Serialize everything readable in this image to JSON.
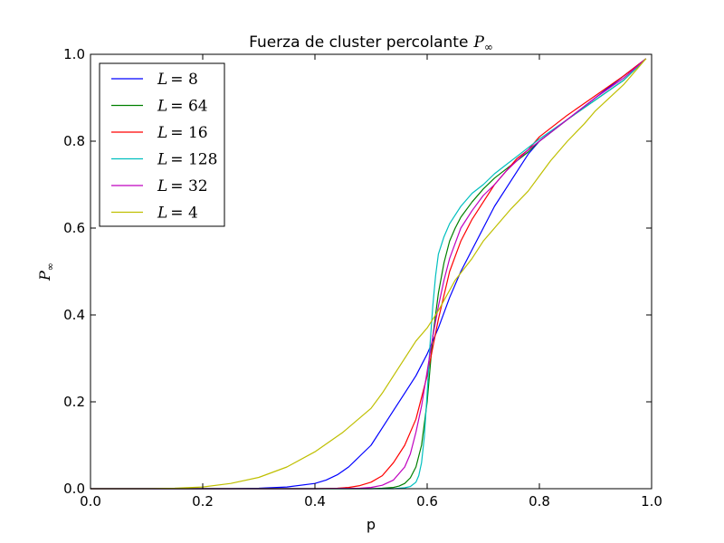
{
  "chart_data": {
    "type": "line",
    "title": "Fuerza de cluster percolante P∞",
    "title_parts": {
      "text": "Fuerza de cluster percolante",
      "math": "P",
      "sub": "∞"
    },
    "xlabel": "p",
    "ylabel": "P∞",
    "ylabel_parts": {
      "math": "P",
      "sub": "∞"
    },
    "xlim": [
      0.0,
      1.0
    ],
    "ylim": [
      0.0,
      1.0
    ],
    "xticks": [
      "0.0",
      "0.2",
      "0.4",
      "0.6",
      "0.8",
      "1.0"
    ],
    "yticks": [
      "0.0",
      "0.2",
      "0.4",
      "0.6",
      "0.8",
      "1.0"
    ],
    "grid": false,
    "legend_position": "top-left",
    "series": [
      {
        "name": "L = 8",
        "label_parts": {
          "var": "L",
          "num": "8"
        },
        "color": "#0000ff",
        "x": [
          0.0,
          0.05,
          0.1,
          0.15,
          0.2,
          0.25,
          0.3,
          0.35,
          0.4,
          0.42,
          0.44,
          0.46,
          0.48,
          0.5,
          0.52,
          0.54,
          0.56,
          0.58,
          0.6,
          0.62,
          0.64,
          0.66,
          0.68,
          0.7,
          0.72,
          0.74,
          0.76,
          0.78,
          0.8,
          0.85,
          0.9,
          0.95,
          0.99
        ],
        "values": [
          0.0,
          0.0,
          0.0,
          0.0,
          0.0,
          0.0,
          0.001,
          0.004,
          0.012,
          0.02,
          0.032,
          0.05,
          0.075,
          0.1,
          0.14,
          0.18,
          0.22,
          0.26,
          0.31,
          0.37,
          0.44,
          0.5,
          0.55,
          0.6,
          0.65,
          0.69,
          0.73,
          0.77,
          0.8,
          0.85,
          0.9,
          0.95,
          0.99
        ]
      },
      {
        "name": "L = 64",
        "label_parts": {
          "var": "L",
          "num": "64"
        },
        "color": "#008000",
        "x": [
          0.0,
          0.1,
          0.2,
          0.3,
          0.4,
          0.5,
          0.52,
          0.54,
          0.55,
          0.56,
          0.57,
          0.58,
          0.59,
          0.6,
          0.61,
          0.62,
          0.63,
          0.64,
          0.65,
          0.66,
          0.68,
          0.7,
          0.72,
          0.74,
          0.76,
          0.78,
          0.8,
          0.85,
          0.9,
          0.95,
          0.99
        ],
        "values": [
          0.0,
          0.0,
          0.0,
          0.0,
          0.0,
          0.0,
          0.001,
          0.003,
          0.006,
          0.012,
          0.025,
          0.05,
          0.1,
          0.2,
          0.35,
          0.45,
          0.52,
          0.57,
          0.6,
          0.625,
          0.66,
          0.69,
          0.715,
          0.735,
          0.755,
          0.775,
          0.8,
          0.85,
          0.895,
          0.94,
          0.99
        ]
      },
      {
        "name": "L = 16",
        "label_parts": {
          "var": "L",
          "num": "16"
        },
        "color": "#ff0000",
        "x": [
          0.0,
          0.1,
          0.2,
          0.3,
          0.4,
          0.44,
          0.46,
          0.48,
          0.5,
          0.52,
          0.54,
          0.56,
          0.58,
          0.6,
          0.62,
          0.64,
          0.66,
          0.68,
          0.7,
          0.72,
          0.74,
          0.76,
          0.78,
          0.8,
          0.85,
          0.9,
          0.95,
          0.99
        ],
        "values": [
          0.0,
          0.0,
          0.0,
          0.0,
          0.0,
          0.001,
          0.003,
          0.007,
          0.015,
          0.03,
          0.06,
          0.1,
          0.16,
          0.26,
          0.39,
          0.5,
          0.57,
          0.62,
          0.66,
          0.7,
          0.73,
          0.76,
          0.78,
          0.81,
          0.86,
          0.905,
          0.95,
          0.99
        ]
      },
      {
        "name": "L = 128",
        "label_parts": {
          "var": "L",
          "num": "128"
        },
        "color": "#00bfbf",
        "x": [
          0.0,
          0.1,
          0.2,
          0.3,
          0.4,
          0.5,
          0.54,
          0.56,
          0.57,
          0.58,
          0.585,
          0.59,
          0.595,
          0.6,
          0.605,
          0.61,
          0.615,
          0.62,
          0.63,
          0.64,
          0.66,
          0.68,
          0.7,
          0.72,
          0.74,
          0.76,
          0.78,
          0.8,
          0.85,
          0.9,
          0.95,
          0.99
        ],
        "values": [
          0.0,
          0.0,
          0.0,
          0.0,
          0.0,
          0.0,
          0.0,
          0.002,
          0.005,
          0.015,
          0.03,
          0.06,
          0.12,
          0.22,
          0.33,
          0.42,
          0.49,
          0.54,
          0.58,
          0.61,
          0.65,
          0.68,
          0.7,
          0.725,
          0.745,
          0.765,
          0.785,
          0.805,
          0.85,
          0.895,
          0.94,
          0.99
        ]
      },
      {
        "name": "L = 32",
        "label_parts": {
          "var": "L",
          "num": "32"
        },
        "color": "#bf00bf",
        "x": [
          0.0,
          0.1,
          0.2,
          0.3,
          0.4,
          0.48,
          0.5,
          0.52,
          0.54,
          0.56,
          0.57,
          0.58,
          0.59,
          0.6,
          0.61,
          0.62,
          0.63,
          0.64,
          0.66,
          0.68,
          0.7,
          0.72,
          0.74,
          0.76,
          0.78,
          0.8,
          0.85,
          0.9,
          0.95,
          0.99
        ],
        "values": [
          0.0,
          0.0,
          0.0,
          0.0,
          0.0,
          0.001,
          0.003,
          0.008,
          0.02,
          0.05,
          0.08,
          0.13,
          0.19,
          0.27,
          0.35,
          0.42,
          0.48,
          0.53,
          0.6,
          0.64,
          0.675,
          0.7,
          0.73,
          0.755,
          0.78,
          0.8,
          0.85,
          0.9,
          0.945,
          0.99
        ]
      },
      {
        "name": "L = 4",
        "label_parts": {
          "var": "L",
          "num": "4"
        },
        "color": "#bfbf00",
        "x": [
          0.0,
          0.1,
          0.15,
          0.2,
          0.25,
          0.3,
          0.35,
          0.4,
          0.45,
          0.5,
          0.52,
          0.55,
          0.58,
          0.6,
          0.62,
          0.65,
          0.68,
          0.7,
          0.72,
          0.75,
          0.78,
          0.8,
          0.82,
          0.85,
          0.88,
          0.9,
          0.95,
          0.99
        ],
        "values": [
          0.0,
          0.0,
          0.001,
          0.004,
          0.012,
          0.026,
          0.05,
          0.085,
          0.13,
          0.185,
          0.22,
          0.28,
          0.34,
          0.37,
          0.41,
          0.48,
          0.53,
          0.57,
          0.6,
          0.645,
          0.685,
          0.72,
          0.755,
          0.8,
          0.84,
          0.87,
          0.93,
          0.99
        ]
      }
    ]
  }
}
